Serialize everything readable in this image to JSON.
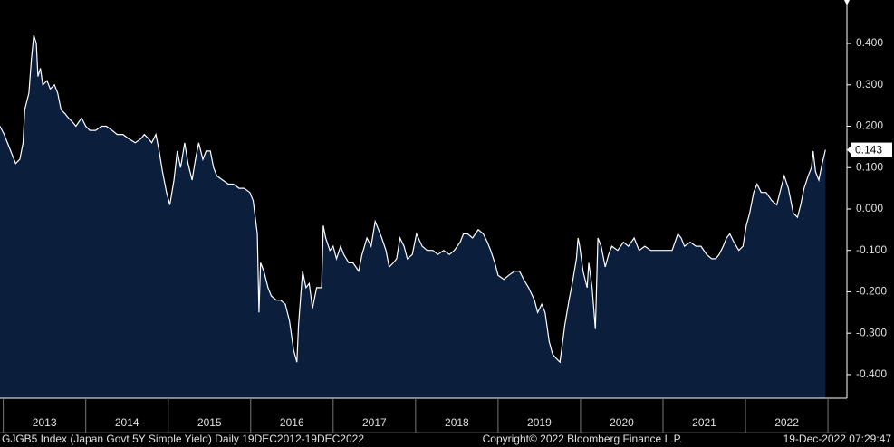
{
  "chart_data": {
    "type": "area-line",
    "title": "GJGB5 Index (Japan Govt 5Y Simple Yield)  Daily 19DEC2012-19DEC2022",
    "copyright": "Copyright© 2022 Bloomberg Finance L.P.",
    "timestamp": "19-Dec-2022 07:29:47",
    "x": [
      2012.96,
      2013.01,
      2013.09,
      2013.15,
      2013.2,
      2013.24,
      2013.26,
      2013.31,
      2013.34,
      2013.37,
      2013.4,
      2013.42,
      2013.45,
      2013.48,
      2013.53,
      2013.57,
      2013.62,
      2013.66,
      2013.7,
      2013.75,
      2013.79,
      2013.84,
      2013.88,
      2013.95,
      2014.0,
      2014.05,
      2014.12,
      2014.19,
      2014.25,
      2014.32,
      2014.38,
      2014.45,
      2014.52,
      2014.6,
      2014.67,
      2014.71,
      2014.76,
      2014.8,
      2014.85,
      2014.89,
      2014.93,
      2014.98,
      2015.02,
      2015.07,
      2015.11,
      2015.15,
      2015.2,
      2015.24,
      2015.29,
      2015.33,
      2015.37,
      2015.42,
      2015.46,
      2015.51,
      2015.55,
      2015.59,
      2015.66,
      2015.73,
      2015.79,
      2015.86,
      2015.92,
      2015.99,
      2016.03,
      2016.08,
      2016.1,
      2016.12,
      2016.16,
      2016.21,
      2016.25,
      2016.31,
      2016.36,
      2016.42,
      2016.47,
      2016.52,
      2016.56,
      2016.58,
      2016.63,
      2016.67,
      2016.71,
      2016.75,
      2016.8,
      2016.86,
      2016.88,
      2016.91,
      2016.96,
      2017.0,
      2017.04,
      2017.09,
      2017.13,
      2017.19,
      2017.24,
      2017.31,
      2017.35,
      2017.41,
      2017.46,
      2017.51,
      2017.55,
      2017.59,
      2017.64,
      2017.68,
      2017.73,
      2017.77,
      2017.81,
      2017.86,
      2017.9,
      2017.96,
      2018.01,
      2018.08,
      2018.14,
      2018.21,
      2018.27,
      2018.34,
      2018.41,
      2018.47,
      2018.54,
      2018.58,
      2018.63,
      2018.69,
      2018.76,
      2018.82,
      2018.87,
      2018.91,
      2018.96,
      2019.0,
      2019.07,
      2019.13,
      2019.2,
      2019.26,
      2019.31,
      2019.37,
      2019.44,
      2019.48,
      2019.53,
      2019.57,
      2019.62,
      2019.66,
      2019.7,
      2019.75,
      2019.77,
      2019.81,
      2019.86,
      2019.9,
      2019.95,
      2019.97,
      2019.99,
      2020.03,
      2020.08,
      2020.1,
      2020.14,
      2020.18,
      2020.21,
      2020.25,
      2020.3,
      2020.34,
      2020.38,
      2020.45,
      2020.52,
      2020.58,
      2020.65,
      2020.71,
      2020.78,
      2020.85,
      2020.91,
      2020.98,
      2021.04,
      2021.11,
      2021.18,
      2021.22,
      2021.26,
      2021.33,
      2021.4,
      2021.46,
      2021.53,
      2021.59,
      2021.64,
      2021.68,
      2021.73,
      2021.77,
      2021.81,
      2021.86,
      2021.92,
      2021.97,
      2022.01,
      2022.05,
      2022.1,
      2022.14,
      2022.19,
      2022.25,
      2022.32,
      2022.38,
      2022.43,
      2022.47,
      2022.52,
      2022.58,
      2022.63,
      2022.67,
      2022.71,
      2022.76,
      2022.8,
      2022.82,
      2022.85,
      2022.89,
      2022.93,
      2022.97
    ],
    "series": [
      {
        "color": "#ffffff",
        "fill": "#0b1f3d",
        "values": [
          0.2,
          0.18,
          0.14,
          0.11,
          0.12,
          0.16,
          0.24,
          0.28,
          0.36,
          0.42,
          0.4,
          0.32,
          0.34,
          0.3,
          0.31,
          0.29,
          0.3,
          0.28,
          0.24,
          0.23,
          0.22,
          0.21,
          0.2,
          0.22,
          0.2,
          0.19,
          0.19,
          0.2,
          0.2,
          0.19,
          0.18,
          0.18,
          0.17,
          0.16,
          0.17,
          0.18,
          0.17,
          0.16,
          0.18,
          0.14,
          0.09,
          0.04,
          0.01,
          0.07,
          0.14,
          0.1,
          0.16,
          0.11,
          0.07,
          0.12,
          0.16,
          0.12,
          0.14,
          0.14,
          0.1,
          0.08,
          0.07,
          0.06,
          0.06,
          0.05,
          0.05,
          0.04,
          0.02,
          -0.06,
          -0.25,
          -0.13,
          -0.15,
          -0.19,
          -0.21,
          -0.22,
          -0.22,
          -0.23,
          -0.27,
          -0.34,
          -0.37,
          -0.28,
          -0.15,
          -0.19,
          -0.18,
          -0.24,
          -0.19,
          -0.19,
          -0.04,
          -0.07,
          -0.1,
          -0.09,
          -0.12,
          -0.09,
          -0.11,
          -0.13,
          -0.13,
          -0.15,
          -0.11,
          -0.07,
          -0.09,
          -0.03,
          -0.05,
          -0.07,
          -0.1,
          -0.14,
          -0.13,
          -0.12,
          -0.07,
          -0.09,
          -0.12,
          -0.11,
          -0.06,
          -0.09,
          -0.1,
          -0.1,
          -0.11,
          -0.1,
          -0.11,
          -0.1,
          -0.08,
          -0.06,
          -0.06,
          -0.07,
          -0.05,
          -0.06,
          -0.08,
          -0.1,
          -0.13,
          -0.16,
          -0.17,
          -0.16,
          -0.15,
          -0.15,
          -0.17,
          -0.19,
          -0.22,
          -0.25,
          -0.23,
          -0.25,
          -0.32,
          -0.35,
          -0.36,
          -0.37,
          -0.34,
          -0.28,
          -0.22,
          -0.18,
          -0.12,
          -0.07,
          -0.09,
          -0.15,
          -0.19,
          -0.13,
          -0.19,
          -0.29,
          -0.07,
          -0.09,
          -0.14,
          -0.11,
          -0.09,
          -0.1,
          -0.08,
          -0.09,
          -0.07,
          -0.1,
          -0.09,
          -0.1,
          -0.1,
          -0.1,
          -0.1,
          -0.1,
          -0.06,
          -0.07,
          -0.09,
          -0.08,
          -0.09,
          -0.09,
          -0.11,
          -0.12,
          -0.12,
          -0.11,
          -0.09,
          -0.07,
          -0.06,
          -0.08,
          -0.1,
          -0.09,
          -0.04,
          -0.01,
          0.04,
          0.06,
          0.04,
          0.04,
          0.02,
          0.01,
          0.05,
          0.08,
          0.05,
          -0.01,
          -0.02,
          0.01,
          0.05,
          0.08,
          0.1,
          0.14,
          0.09,
          0.07,
          0.11,
          0.143
        ]
      }
    ],
    "xlim": [
      2012.96,
      2023.23
    ],
    "xticks": [
      {
        "value": 2013,
        "label": "2013"
      },
      {
        "value": 2014,
        "label": "2014"
      },
      {
        "value": 2015,
        "label": "2015"
      },
      {
        "value": 2016,
        "label": "2016"
      },
      {
        "value": 2017,
        "label": "2017"
      },
      {
        "value": 2018,
        "label": "2018"
      },
      {
        "value": 2019,
        "label": "2019"
      },
      {
        "value": 2020,
        "label": "2020"
      },
      {
        "value": 2021,
        "label": "2021"
      },
      {
        "value": 2022,
        "label": "2022"
      }
    ],
    "ylim": [
      -0.457,
      0.505
    ],
    "yticks": [
      {
        "value": 0.4,
        "label": "0.400"
      },
      {
        "value": 0.3,
        "label": "0.300"
      },
      {
        "value": 0.2,
        "label": "0.200"
      },
      {
        "value": 0.1,
        "label": "0.100"
      },
      {
        "value": 0,
        "label": "0.000"
      },
      {
        "value": -0.1,
        "label": "-0.100"
      },
      {
        "value": -0.2,
        "label": "-0.200"
      },
      {
        "value": -0.3,
        "label": "-0.300"
      },
      {
        "value": -0.4,
        "label": "-0.400"
      }
    ]
  }
}
